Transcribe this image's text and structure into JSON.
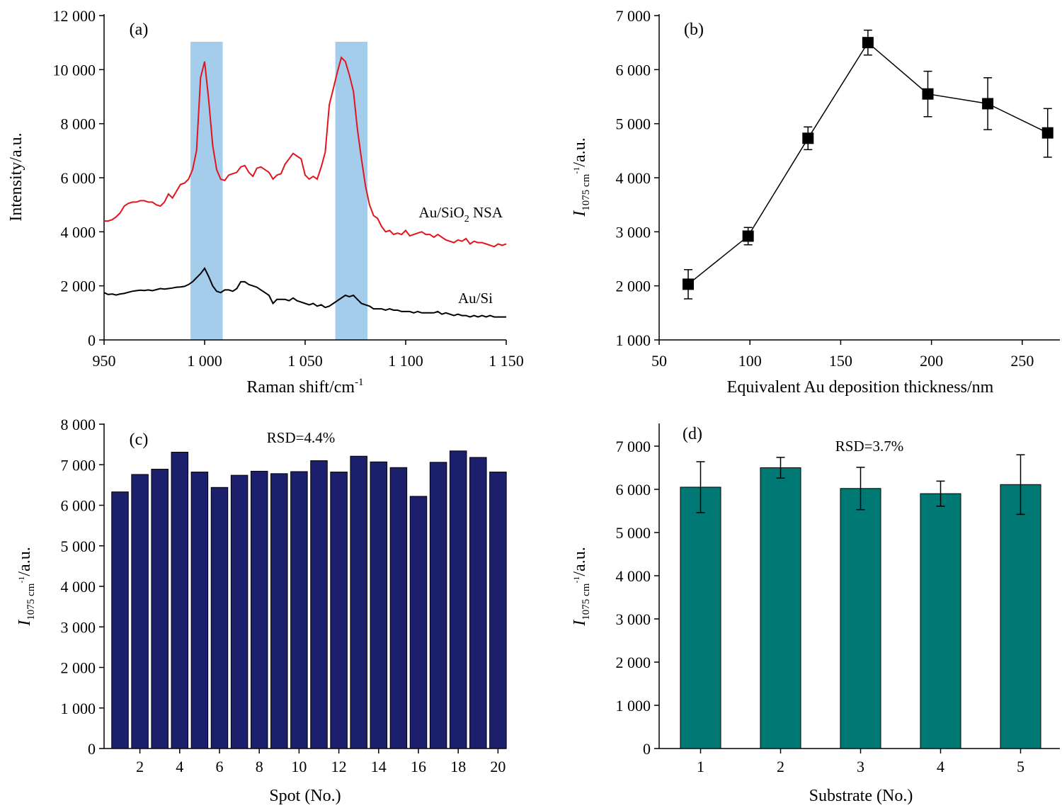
{
  "chart_data": [
    {
      "panel": "a",
      "type": "line",
      "panel_label": "(a)",
      "xlabel": "Raman shift/cm",
      "xlabel_sup": "-1",
      "ylabel": "Intensity/a.u.",
      "xlim": [
        950,
        1150
      ],
      "ylim": [
        0,
        12000
      ],
      "xticks": [
        950,
        1000,
        1050,
        1100,
        1150
      ],
      "xtick_labels": [
        "950",
        "1 000",
        "1 050",
        "1 100",
        "1 150"
      ],
      "yticks": [
        0,
        2000,
        4000,
        6000,
        8000,
        10000,
        12000
      ],
      "ytick_labels": [
        "0",
        "2 000",
        "4 000",
        "6 000",
        "8 000",
        "10 000",
        "12 000"
      ],
      "highlight_bands": [
        [
          993,
          1009
        ],
        [
          1065,
          1081
        ]
      ],
      "highlight_color": "#a4cdec",
      "series": [
        {
          "name": "Au/SiO2 NSA",
          "label_main": "Au/SiO",
          "label_sub": "2",
          "label_tail": " NSA",
          "color": "#e3141b",
          "x": [
            950,
            952,
            954,
            956,
            958,
            960,
            962,
            964,
            966,
            968,
            970,
            972,
            974,
            976,
            978,
            980,
            982,
            984,
            986,
            988,
            990,
            992,
            994,
            996,
            998,
            1000,
            1002,
            1004,
            1006,
            1008,
            1010,
            1012,
            1014,
            1016,
            1018,
            1020,
            1022,
            1024,
            1026,
            1028,
            1030,
            1032,
            1034,
            1036,
            1038,
            1040,
            1042,
            1044,
            1046,
            1048,
            1050,
            1052,
            1054,
            1056,
            1058,
            1060,
            1062,
            1064,
            1066,
            1068,
            1070,
            1072,
            1074,
            1076,
            1078,
            1080,
            1082,
            1084,
            1086,
            1088,
            1090,
            1092,
            1094,
            1096,
            1098,
            1100,
            1102,
            1104,
            1106,
            1108,
            1110,
            1112,
            1114,
            1116,
            1118,
            1120,
            1122,
            1124,
            1126,
            1128,
            1130,
            1132,
            1134,
            1136,
            1138,
            1140,
            1142,
            1144,
            1146,
            1148,
            1150
          ],
          "y": [
            4400,
            4400,
            4450,
            4550,
            4700,
            4950,
            5050,
            5100,
            5100,
            5150,
            5150,
            5100,
            5100,
            5000,
            4950,
            5100,
            5400,
            5250,
            5500,
            5750,
            5800,
            5950,
            6300,
            7000,
            9700,
            10300,
            8900,
            7200,
            6300,
            5950,
            5900,
            6100,
            6150,
            6200,
            6400,
            6450,
            6200,
            6050,
            6350,
            6400,
            6300,
            6200,
            5950,
            6100,
            6150,
            6500,
            6700,
            6900,
            6800,
            6700,
            6100,
            5950,
            6050,
            5950,
            6400,
            6950,
            8700,
            9300,
            9900,
            10450,
            10300,
            9800,
            9200,
            7800,
            6700,
            5700,
            5000,
            4600,
            4500,
            4200,
            4000,
            4050,
            3900,
            3950,
            3900,
            4050,
            3850,
            3900,
            3950,
            4000,
            3900,
            3900,
            3800,
            3900,
            3800,
            3700,
            3650,
            3600,
            3700,
            3650,
            3750,
            3550,
            3650,
            3600,
            3600,
            3550,
            3500,
            3450,
            3550,
            3500,
            3550
          ]
        },
        {
          "name": "Au/Si",
          "color": "#000000",
          "x": [
            950,
            952,
            954,
            956,
            958,
            960,
            962,
            964,
            966,
            968,
            970,
            972,
            974,
            976,
            978,
            980,
            982,
            984,
            986,
            988,
            990,
            992,
            994,
            996,
            998,
            1000,
            1002,
            1004,
            1006,
            1008,
            1010,
            1012,
            1014,
            1016,
            1018,
            1020,
            1022,
            1024,
            1026,
            1028,
            1030,
            1032,
            1034,
            1036,
            1038,
            1040,
            1042,
            1044,
            1046,
            1048,
            1050,
            1052,
            1054,
            1056,
            1058,
            1060,
            1062,
            1064,
            1066,
            1068,
            1070,
            1072,
            1074,
            1076,
            1078,
            1080,
            1082,
            1084,
            1086,
            1088,
            1090,
            1092,
            1094,
            1096,
            1098,
            1100,
            1102,
            1104,
            1106,
            1108,
            1110,
            1112,
            1114,
            1116,
            1118,
            1120,
            1122,
            1124,
            1126,
            1128,
            1130,
            1132,
            1134,
            1136,
            1138,
            1140,
            1142,
            1144,
            1146,
            1148,
            1150
          ],
          "y": [
            1750,
            1680,
            1700,
            1660,
            1700,
            1720,
            1760,
            1800,
            1820,
            1840,
            1830,
            1850,
            1820,
            1860,
            1900,
            1880,
            1900,
            1920,
            1950,
            1960,
            1980,
            2050,
            2150,
            2300,
            2450,
            2650,
            2350,
            2000,
            1800,
            1750,
            1850,
            1850,
            1800,
            1900,
            2150,
            2150,
            2050,
            2000,
            1950,
            1850,
            1750,
            1650,
            1350,
            1500,
            1500,
            1500,
            1450,
            1550,
            1450,
            1400,
            1350,
            1300,
            1350,
            1250,
            1300,
            1200,
            1250,
            1350,
            1450,
            1550,
            1650,
            1600,
            1650,
            1500,
            1350,
            1300,
            1250,
            1150,
            1150,
            1150,
            1100,
            1150,
            1100,
            1100,
            1050,
            1050,
            1050,
            1000,
            1050,
            1000,
            1000,
            1000,
            1000,
            1050,
            950,
            1000,
            950,
            900,
            950,
            900,
            900,
            850,
            900,
            850,
            900,
            850,
            900,
            850,
            850,
            850,
            850
          ]
        }
      ]
    },
    {
      "panel": "b",
      "type": "line",
      "panel_label": "(b)",
      "xlabel": "Equivalent Au deposition thickness/nm",
      "ylabel": "I",
      "ylabel_sub": "1075 cm",
      "ylabel_sup": "-1",
      "ylabel_tail": "/a.u.",
      "xlim": [
        50,
        270
      ],
      "ylim": [
        1000,
        7000
      ],
      "xticks": [
        50,
        100,
        150,
        200,
        250
      ],
      "xtick_labels": [
        "50",
        "100",
        "150",
        "200",
        "250"
      ],
      "yticks": [
        1000,
        2000,
        3000,
        4000,
        5000,
        6000,
        7000
      ],
      "ytick_labels": [
        "1 000",
        "2 000",
        "3 000",
        "4 000",
        "5 000",
        "6 000",
        "7 000"
      ],
      "series": [
        {
          "color": "#000000",
          "marker": "square",
          "x": [
            66,
            99,
            132,
            165,
            198,
            231,
            264
          ],
          "y": [
            2030,
            2920,
            4730,
            6500,
            5550,
            5370,
            4830
          ],
          "err": [
            270,
            160,
            210,
            230,
            420,
            480,
            450
          ]
        }
      ]
    },
    {
      "panel": "c",
      "type": "bar",
      "panel_label": "(c)",
      "annotation": "RSD=4.4%",
      "xlabel": "Spot (No.)",
      "ylabel": "I",
      "ylabel_sub": "1075 cm",
      "ylabel_sup": "-1",
      "ylabel_tail": "/a.u.",
      "ylim": [
        0,
        8000
      ],
      "yticks": [
        0,
        1000,
        2000,
        3000,
        4000,
        5000,
        6000,
        7000,
        8000
      ],
      "ytick_labels": [
        "0",
        "1 000",
        "2 000",
        "3 000",
        "4 000",
        "5 000",
        "6 000",
        "7 000",
        "8 000"
      ],
      "categories": [
        1,
        2,
        3,
        4,
        5,
        6,
        7,
        8,
        9,
        10,
        11,
        12,
        13,
        14,
        15,
        16,
        17,
        18,
        19,
        20
      ],
      "xtick_labels": [
        "2",
        "4",
        "6",
        "8",
        "10",
        "12",
        "14",
        "16",
        "18",
        "20"
      ],
      "bar_color": "#1c1f6b",
      "values": [
        6330,
        6760,
        6890,
        7310,
        6820,
        6440,
        6740,
        6840,
        6780,
        6830,
        7100,
        6820,
        7210,
        7070,
        6930,
        6220,
        7060,
        7340,
        7180,
        6820
      ]
    },
    {
      "panel": "d",
      "type": "bar",
      "panel_label": "(d)",
      "annotation": "RSD=3.7%",
      "xlabel": "Substrate (No.)",
      "ylabel": "I",
      "ylabel_sub": "1075 cm",
      "ylabel_sup": "-1",
      "ylabel_tail": "/a.u.",
      "ylim": [
        0,
        7500
      ],
      "yticks": [
        0,
        1000,
        2000,
        3000,
        4000,
        5000,
        6000,
        7000
      ],
      "ytick_labels": [
        "0",
        "1 000",
        "2 000",
        "3 000",
        "4 000",
        "5 000",
        "6 000",
        "7 000"
      ],
      "categories": [
        "1",
        "2",
        "3",
        "4",
        "5"
      ],
      "bar_color": "#007873",
      "values": [
        6050,
        6500,
        6020,
        5900,
        6110
      ],
      "err": [
        590,
        240,
        490,
        290,
        690
      ]
    }
  ]
}
